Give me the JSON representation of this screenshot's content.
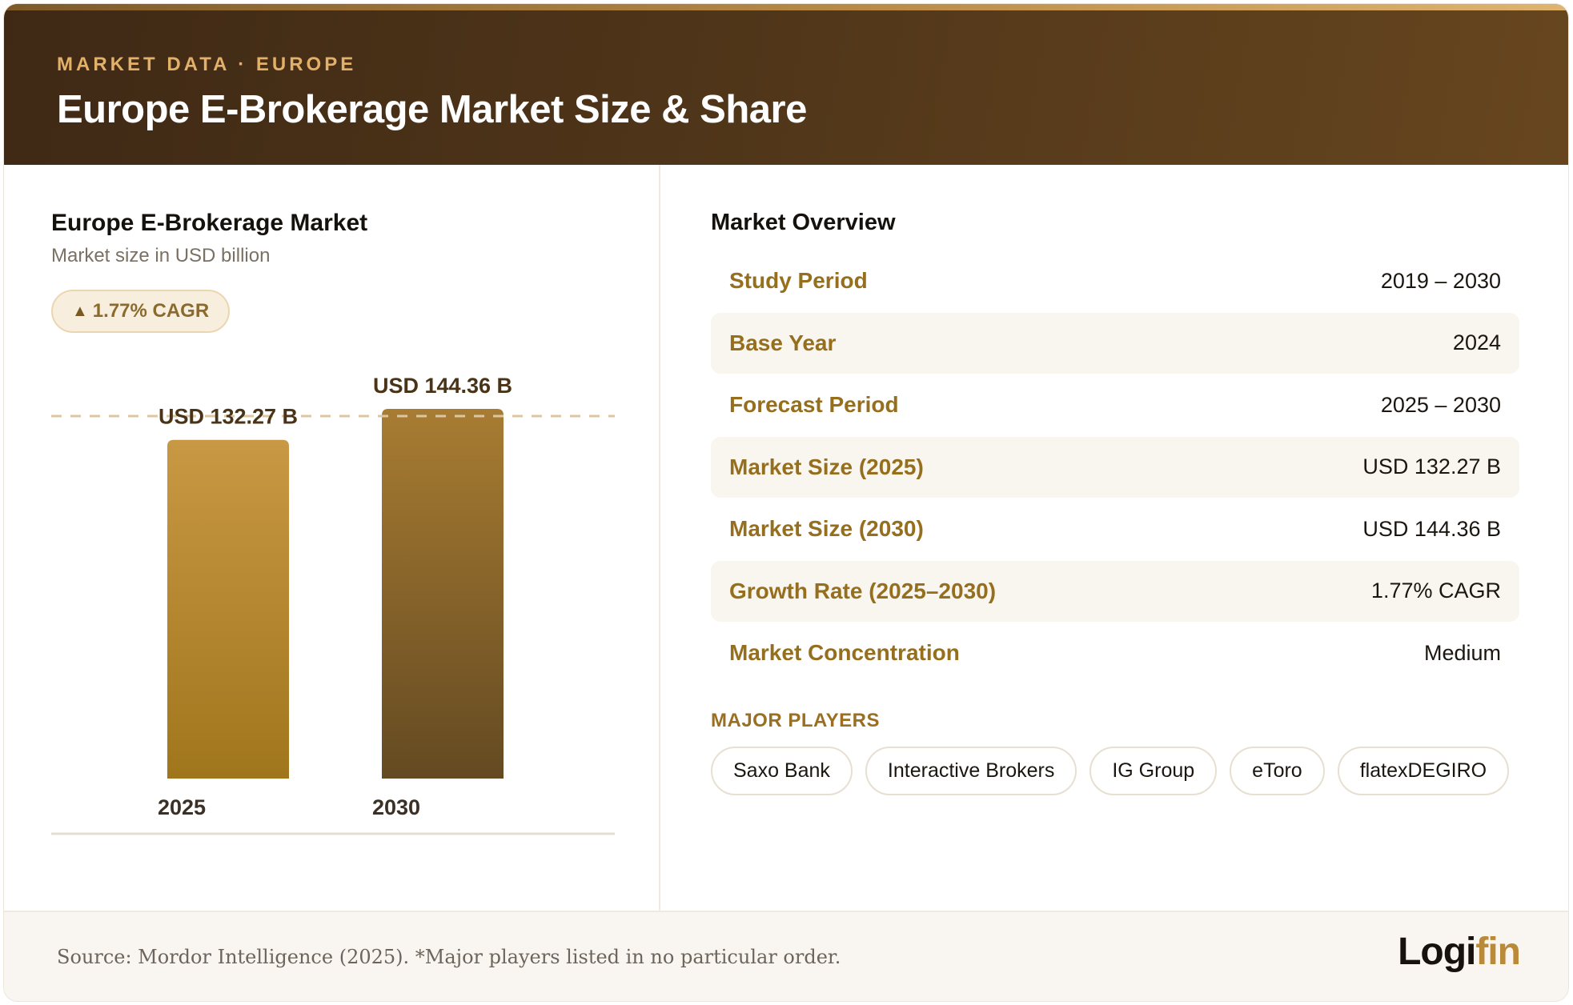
{
  "header": {
    "eyebrow": "MARKET DATA · EUROPE",
    "title": "Europe E-Brokerage Market Size & Share"
  },
  "chart_panel": {
    "title": "Europe E-Brokerage Market",
    "subtitle": "Market size in USD billion",
    "cagr_badge": "1.77% CAGR"
  },
  "chart_data": {
    "type": "bar",
    "categories": [
      "2025",
      "2030"
    ],
    "values": [
      132.27,
      144.36
    ],
    "data_labels": [
      "USD 132.27 B",
      "USD 144.36 B"
    ],
    "title": "Europe E-Brokerage Market",
    "ylabel": "Market size in USD billion",
    "reference_line_value": 144.36,
    "colors": {
      "bar_2025": [
        "#c99844",
        "#a0761c"
      ],
      "bar_2030": [
        "#a87c32",
        "#644a22"
      ],
      "label": "#4a3418",
      "tick": "#3b3026"
    }
  },
  "overview": {
    "title": "Market Overview",
    "rows": [
      {
        "label": "Study Period",
        "value": "2019 – 2030"
      },
      {
        "label": "Base Year",
        "value": "2024"
      },
      {
        "label": "Forecast Period",
        "value": "2025 – 2030"
      },
      {
        "label": "Market Size (2025)",
        "value": "USD 132.27 B"
      },
      {
        "label": "Market Size (2030)",
        "value": "USD 144.36 B"
      },
      {
        "label": "Growth Rate (2025–2030)",
        "value": "1.77% CAGR"
      },
      {
        "label": "Market Concentration",
        "value": "Medium"
      }
    ]
  },
  "players": {
    "title": "MAJOR PLAYERS",
    "items": [
      "Saxo Bank",
      "Interactive Brokers",
      "IG Group",
      "eToro",
      "flatexDEGIRO"
    ]
  },
  "footer": {
    "source": "Source: Mordor Intelligence (2025). *Major players listed in no particular order.",
    "logo_part1": "Logi",
    "logo_part2": "fin"
  },
  "colors": {
    "accent": "#966f1e",
    "header_bg": "#4f3519"
  }
}
